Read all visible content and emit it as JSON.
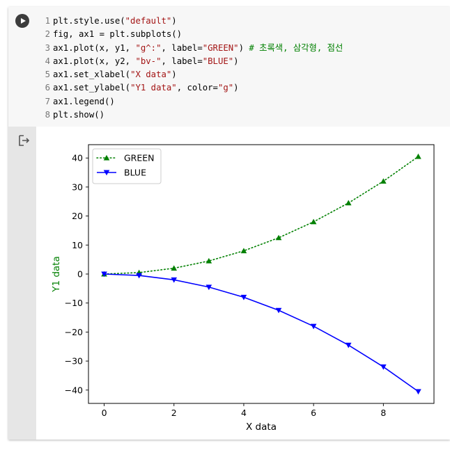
{
  "notebook": {
    "code_lines": [
      {
        "n": "1",
        "parts": [
          {
            "t": "plt.style.use("
          },
          {
            "t": "\"default\"",
            "c": "str"
          },
          {
            "t": ")"
          }
        ]
      },
      {
        "n": "2",
        "parts": [
          {
            "t": "fig, ax1 = plt.subplots()"
          }
        ]
      },
      {
        "n": "3",
        "parts": [
          {
            "t": "ax1.plot(x, y1, "
          },
          {
            "t": "\"g^:\"",
            "c": "str"
          },
          {
            "t": ", label="
          },
          {
            "t": "\"GREEN\"",
            "c": "str"
          },
          {
            "t": ") "
          },
          {
            "t": "# 초록색, 삼각형, 점선",
            "c": "cmt"
          }
        ]
      },
      {
        "n": "4",
        "parts": [
          {
            "t": "ax1.plot(x, y2, "
          },
          {
            "t": "\"bv-\"",
            "c": "str"
          },
          {
            "t": ", label="
          },
          {
            "t": "\"BLUE\"",
            "c": "str"
          },
          {
            "t": ")"
          }
        ]
      },
      {
        "n": "5",
        "parts": [
          {
            "t": "ax1.set_xlabel("
          },
          {
            "t": "\"X data\"",
            "c": "str"
          },
          {
            "t": ")"
          }
        ]
      },
      {
        "n": "6",
        "parts": [
          {
            "t": "ax1.set_ylabel("
          },
          {
            "t": "\"Y1 data\"",
            "c": "str"
          },
          {
            "t": ", color="
          },
          {
            "t": "\"g\"",
            "c": "str"
          },
          {
            "t": ")"
          }
        ]
      },
      {
        "n": "7",
        "parts": [
          {
            "t": "ax1.legend()"
          }
        ]
      },
      {
        "n": "8",
        "parts": [
          {
            "t": "plt.show()"
          }
        ]
      }
    ],
    "run_icon": "play-icon",
    "output_icon": "output-redirect-icon"
  },
  "chart_data": {
    "type": "line",
    "xlabel": "X data",
    "ylabel": "Y1 data",
    "ylabel_color": "#008000",
    "x": [
      0,
      1,
      2,
      3,
      4,
      5,
      6,
      7,
      8,
      9
    ],
    "xlim": [
      -0.45,
      9.45
    ],
    "ylim": [
      -44.6,
      44.6
    ],
    "xticks": [
      0,
      2,
      4,
      6,
      8
    ],
    "yticks": [
      -40,
      -30,
      -20,
      -10,
      0,
      10,
      20,
      30,
      40
    ],
    "ytick_labels": [
      "−40",
      "−30",
      "−20",
      "−10",
      "0",
      "10",
      "20",
      "30",
      "40"
    ],
    "legend_position": "upper-left",
    "grid": false,
    "series": [
      {
        "name": "GREEN",
        "color": "#008000",
        "marker": "triangle-up",
        "linestyle": "dotted",
        "values": [
          0,
          0.5,
          2,
          4.5,
          8,
          12.5,
          18,
          24.5,
          32,
          40.5
        ]
      },
      {
        "name": "BLUE",
        "color": "#0000ff",
        "marker": "triangle-down",
        "linestyle": "solid",
        "values": [
          0,
          -0.5,
          -2,
          -4.5,
          -8,
          -12.5,
          -18,
          -24.5,
          -32,
          -40.5
        ]
      }
    ]
  }
}
